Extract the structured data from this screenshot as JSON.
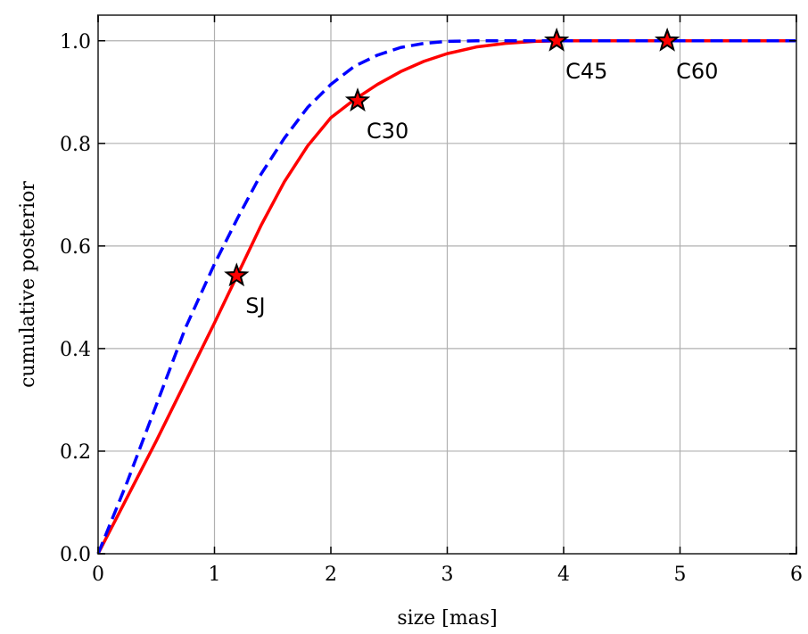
{
  "chart_data": {
    "type": "line",
    "xlabel": "size [mas]",
    "ylabel": "cumulative posterior",
    "xlim": [
      0,
      6
    ],
    "ylim": [
      0,
      1.05
    ],
    "xticks": [
      0,
      1,
      2,
      3,
      4,
      5,
      6
    ],
    "yticks": [
      0.0,
      0.2,
      0.4,
      0.6,
      0.8,
      1.0
    ],
    "xtick_labels": [
      "0",
      "1",
      "2",
      "3",
      "4",
      "5",
      "6"
    ],
    "ytick_labels": [
      "0.0",
      "0.2",
      "0.4",
      "0.6",
      "0.8",
      "1.0"
    ],
    "grid": true,
    "series": [
      {
        "style": "solid",
        "color": "#ff0000",
        "x": [
          0,
          0.25,
          0.5,
          0.75,
          1.0,
          1.2,
          1.4,
          1.6,
          1.8,
          2.0,
          2.2,
          2.4,
          2.6,
          2.8,
          3.0,
          3.25,
          3.5,
          3.75,
          4.0,
          5.0,
          6.0
        ],
        "y": [
          0,
          0.11,
          0.22,
          0.335,
          0.45,
          0.545,
          0.64,
          0.725,
          0.795,
          0.85,
          0.885,
          0.915,
          0.94,
          0.96,
          0.975,
          0.988,
          0.995,
          0.999,
          1.0,
          1.0,
          1.0
        ]
      },
      {
        "style": "dashed",
        "color": "#0000ff",
        "x": [
          0,
          0.25,
          0.5,
          0.75,
          1.0,
          1.2,
          1.4,
          1.6,
          1.8,
          2.0,
          2.2,
          2.4,
          2.6,
          2.8,
          3.0,
          3.25,
          3.5,
          3.75,
          4.0,
          5.0,
          6.0
        ],
        "y": [
          0,
          0.14,
          0.29,
          0.44,
          0.565,
          0.655,
          0.74,
          0.81,
          0.87,
          0.915,
          0.95,
          0.972,
          0.987,
          0.995,
          0.999,
          1.0,
          1.0,
          1.0,
          1.0,
          1.0,
          1.0
        ]
      }
    ],
    "markers": [
      {
        "label": "SJ",
        "x": 1.19,
        "y": 0.542
      },
      {
        "label": "C30",
        "x": 2.23,
        "y": 0.883
      },
      {
        "label": "C45",
        "x": 3.94,
        "y": 1.0
      },
      {
        "label": "C60",
        "x": 4.89,
        "y": 1.0
      }
    ],
    "colors": {
      "solid_series": "#ff0000",
      "dashed_series": "#0000ff",
      "marker_fill": "#ff0000",
      "marker_edge": "#000000",
      "grid": "#b0b0b0",
      "axes": "#555555"
    }
  }
}
